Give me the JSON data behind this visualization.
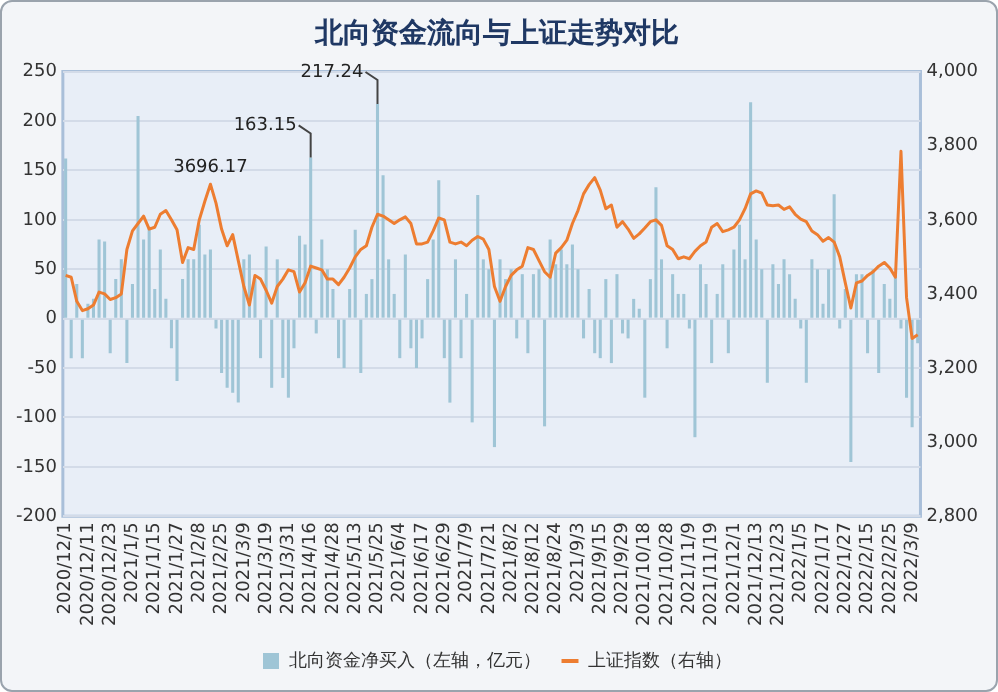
{
  "chart_data": {
    "type": "bar",
    "title": "北向资金流向与上证走势对比",
    "categories": [
      "2020/12/1",
      null,
      null,
      null,
      "2020/12/11",
      null,
      null,
      null,
      "2020/12/23",
      null,
      null,
      null,
      "2021/1/5",
      null,
      null,
      null,
      "2021/1/15",
      null,
      null,
      null,
      "2021/1/27",
      null,
      null,
      null,
      "2021/2/8",
      null,
      null,
      null,
      "2021/2/25",
      null,
      null,
      null,
      "2021/3/9",
      null,
      null,
      null,
      "2021/3/19",
      null,
      null,
      null,
      "2021/3/31",
      null,
      null,
      null,
      "2021/4/16",
      null,
      null,
      null,
      "2021/4/28",
      null,
      null,
      null,
      "2021/5/13",
      null,
      null,
      null,
      "2021/5/25",
      null,
      null,
      null,
      "2021/6/4",
      null,
      null,
      null,
      "2021/6/17",
      null,
      null,
      null,
      "2021/6/29",
      null,
      null,
      null,
      "2021/7/9",
      null,
      null,
      null,
      "2021/7/21",
      null,
      null,
      null,
      "2021/8/2",
      null,
      null,
      null,
      "2021/8/12",
      null,
      null,
      null,
      "2021/8/24",
      null,
      null,
      null,
      "2021/9/3",
      null,
      null,
      null,
      "2021/9/15",
      null,
      null,
      null,
      "2021/9/29",
      null,
      null,
      null,
      "2021/10/18",
      null,
      null,
      null,
      "2021/10/28",
      null,
      null,
      null,
      "2021/11/9",
      null,
      null,
      null,
      "2021/11/19",
      null,
      null,
      null,
      "2021/12/1",
      null,
      null,
      null,
      "2021/12/13",
      null,
      null,
      null,
      "2021/12/23",
      null,
      null,
      null,
      "2022/1/5",
      null,
      null,
      null,
      "2022/1/17",
      null,
      null,
      null,
      "2022/1/27",
      null,
      null,
      null,
      "2022/2/15",
      null,
      null,
      null,
      "2022/2/25",
      null,
      null,
      null,
      "2022/3/9",
      null
    ],
    "series": [
      {
        "name": "北向资金净买入（左轴，亿元）",
        "color": "#9fc5d6",
        "values": [
          162,
          -40,
          35,
          -40,
          15,
          20,
          80,
          78,
          -35,
          40,
          60,
          -45,
          35,
          205,
          80,
          93,
          30,
          70,
          20,
          -30,
          -63,
          40,
          60,
          60,
          95,
          65,
          70,
          -10,
          -55,
          -70,
          -75,
          -85,
          60,
          65,
          40,
          -40,
          73,
          -70,
          60,
          -60,
          -80,
          -30,
          84,
          75,
          163.15,
          -15,
          80,
          50,
          30,
          -40,
          -50,
          30,
          90,
          -55,
          25,
          40,
          217.24,
          145,
          60,
          25,
          -40,
          65,
          -30,
          -50,
          -20,
          40,
          80,
          140,
          -40,
          -85,
          60,
          -40,
          25,
          -105,
          125,
          60,
          50,
          -130,
          60,
          40,
          50,
          -20,
          45,
          -35,
          45,
          50,
          -109,
          80,
          55,
          70,
          55,
          75,
          50,
          -20,
          30,
          -35,
          -40,
          40,
          -45,
          45,
          -15,
          -20,
          20,
          10,
          -80,
          40,
          133,
          60,
          -30,
          45,
          25,
          25,
          -10,
          -120,
          55,
          35,
          -45,
          25,
          55,
          -35,
          70,
          95,
          60,
          219,
          80,
          50,
          -65,
          55,
          35,
          60,
          45,
          20,
          -10,
          -65,
          60,
          50,
          15,
          50,
          126,
          -10,
          30,
          -145,
          45,
          45,
          -35,
          50,
          -55,
          35,
          20,
          45,
          -10,
          -80,
          -110,
          -25
        ],
        "value_labels": [
          null,
          null,
          null,
          null,
          null,
          null,
          null,
          null,
          null,
          null,
          null,
          null,
          null,
          null,
          null,
          null,
          null,
          null,
          null,
          null,
          null,
          null,
          null,
          null,
          null,
          null,
          null,
          null,
          null,
          null,
          null,
          null,
          null,
          null,
          null,
          null,
          null,
          null,
          null,
          null,
          null,
          null,
          null,
          null,
          "163.15",
          null,
          null,
          null,
          null,
          null,
          null,
          null,
          null,
          null,
          null,
          null,
          "217.24",
          null,
          null,
          null,
          null,
          null,
          null,
          null,
          null,
          null,
          null,
          null,
          null,
          null,
          null,
          null,
          null,
          null,
          null,
          null,
          null,
          null,
          null,
          null,
          null,
          null,
          null,
          null,
          null,
          null,
          null,
          null,
          null,
          null,
          null,
          null,
          null,
          null,
          null,
          null,
          null,
          null,
          null,
          null,
          null,
          null,
          null,
          null,
          null,
          null,
          null,
          null,
          null,
          null,
          null,
          null,
          null,
          null,
          null,
          null,
          null,
          null,
          null,
          null,
          null,
          null,
          null,
          null,
          null,
          null,
          null,
          null,
          null,
          null,
          null,
          null,
          null,
          null,
          null,
          null,
          null,
          null,
          null,
          null,
          null,
          null,
          null,
          null,
          null,
          null,
          null,
          null,
          null,
          null,
          null,
          null,
          null,
          null
        ]
      },
      {
        "name": "上证指数（右轴）",
        "type": "line",
        "axis": "y2",
        "color": "#ed7d31",
        "values": [
          3450,
          3445,
          3380,
          3355,
          3360,
          3370,
          3405,
          3400,
          3385,
          3390,
          3400,
          3520,
          3570,
          3590,
          3610,
          3575,
          3580,
          3615,
          3625,
          3600,
          3573,
          3485,
          3525,
          3520,
          3600,
          3650,
          3696.17,
          3645,
          3575,
          3530,
          3560,
          3490,
          3420,
          3370,
          3450,
          3440,
          3410,
          3375,
          3420,
          3440,
          3465,
          3460,
          3405,
          3430,
          3475,
          3470,
          3465,
          3440,
          3440,
          3425,
          3445,
          3470,
          3500,
          3520,
          3530,
          3580,
          3615,
          3610,
          3600,
          3590,
          3600,
          3608,
          3590,
          3535,
          3535,
          3540,
          3570,
          3605,
          3600,
          3540,
          3535,
          3540,
          3530,
          3545,
          3555,
          3548,
          3520,
          3420,
          3380,
          3420,
          3450,
          3465,
          3475,
          3525,
          3520,
          3490,
          3460,
          3445,
          3510,
          3525,
          3545,
          3590,
          3625,
          3670,
          3695,
          3714,
          3680,
          3630,
          3640,
          3580,
          3595,
          3575,
          3550,
          3562,
          3578,
          3595,
          3600,
          3585,
          3530,
          3520,
          3495,
          3500,
          3495,
          3515,
          3530,
          3540,
          3580,
          3590,
          3568,
          3573,
          3580,
          3600,
          3630,
          3670,
          3678,
          3672,
          3640,
          3638,
          3640,
          3628,
          3635,
          3615,
          3602,
          3595,
          3570,
          3560,
          3542,
          3552,
          3540,
          3500,
          3430,
          3362,
          3430,
          3435,
          3450,
          3460,
          3475,
          3485,
          3470,
          3445,
          3785,
          3390,
          3280,
          3290
        ],
        "value_labels": [
          null,
          null,
          null,
          null,
          null,
          null,
          null,
          null,
          null,
          null,
          null,
          null,
          null,
          null,
          null,
          null,
          null,
          null,
          null,
          null,
          null,
          null,
          null,
          null,
          null,
          null,
          "3696.17",
          null,
          null,
          null,
          null,
          null,
          null,
          null,
          null,
          null,
          null,
          null,
          null,
          null,
          null,
          null,
          null,
          null,
          null,
          null,
          null,
          null,
          null,
          null,
          null,
          null,
          null,
          null,
          null,
          null,
          null,
          null,
          null,
          null,
          null,
          null,
          null,
          null,
          null,
          null,
          null,
          null,
          null,
          null,
          null,
          null,
          null,
          null,
          null,
          null,
          null,
          null,
          null,
          null,
          null,
          null,
          null,
          null,
          null,
          null,
          null,
          null,
          null,
          null,
          null,
          null,
          null,
          null,
          null,
          null,
          null,
          null,
          null,
          null,
          null,
          null,
          null,
          null,
          null,
          null,
          null,
          null,
          null,
          null,
          null,
          null,
          null,
          null,
          null,
          null,
          null,
          null,
          null,
          null,
          null,
          null,
          null,
          null,
          null,
          null,
          null,
          null,
          null,
          null,
          null,
          null,
          null,
          null,
          null,
          null,
          null,
          null,
          null,
          null,
          null,
          null,
          null,
          null,
          null,
          null,
          null,
          null,
          null,
          null,
          null,
          null,
          null,
          null
        ]
      }
    ],
    "ylim": [
      -200,
      250
    ],
    "yticks": [
      -200,
      -150,
      -100,
      -50,
      0,
      50,
      100,
      150,
      200,
      250
    ],
    "y2lim": [
      2800,
      4000
    ],
    "y2ticks": [
      {
        "value": 2800,
        "label": "2,800"
      },
      {
        "value": 3000,
        "label": "3,000"
      },
      {
        "value": 3200,
        "label": "3,200"
      },
      {
        "value": 3400,
        "label": "3,400"
      },
      {
        "value": 3600,
        "label": "3,600"
      },
      {
        "value": 3800,
        "label": "3,800"
      },
      {
        "value": 4000,
        "label": "4,000"
      }
    ],
    "grid": "y",
    "legend": "bottom",
    "marker": "none",
    "line_style": "solid"
  }
}
